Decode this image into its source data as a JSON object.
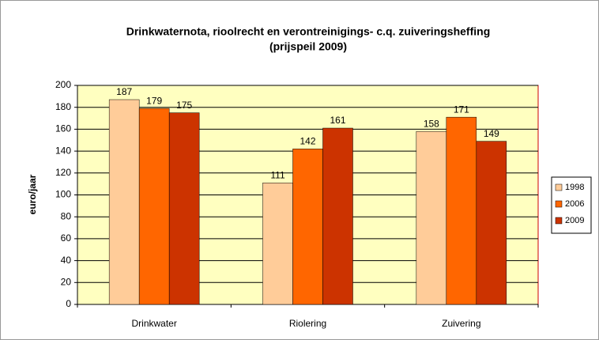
{
  "chart_data": {
    "type": "bar",
    "title": "Drinkwaternota, rioolrecht en verontreinigings- c.q. zuiveringsheffing",
    "subtitle": "(prijspeil 2009)",
    "y_label": "euro/jaar",
    "categories": [
      "Drinkwater",
      "Riolering",
      "Zuivering"
    ],
    "series": [
      {
        "name": "1998",
        "color": "#ffcc99",
        "values": [
          187,
          111,
          158
        ]
      },
      {
        "name": "2006",
        "color": "#ff6600",
        "values": [
          179,
          142,
          171
        ]
      },
      {
        "name": "2009",
        "color": "#cc3300",
        "values": [
          175,
          161,
          149
        ]
      }
    ],
    "ylim": [
      0,
      200
    ],
    "yticks": [
      0,
      20,
      40,
      60,
      80,
      100,
      120,
      140,
      160,
      180,
      200
    ],
    "grid": true,
    "legend": "right"
  }
}
